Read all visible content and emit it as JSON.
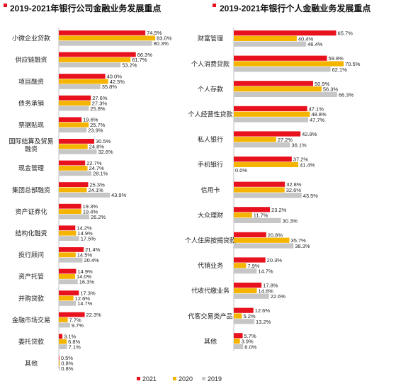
{
  "colors": {
    "y2021": "#e8121e",
    "y2020": "#f5b400",
    "y2019": "#c6c6c6",
    "title_marker": "#e8121e"
  },
  "legend": [
    "2021",
    "2020",
    "2019"
  ],
  "chart_data": [
    {
      "type": "bar",
      "orientation": "horizontal",
      "title": "2019-2021年银行公司金融业务发展重点",
      "categories": [
        "小微企业贷款",
        "供应链融资",
        "项目融资",
        "债务承销",
        "票据贴现",
        "国际结算及贸易融资",
        "现金管理",
        "集团总部融资",
        "资产证券化",
        "结构化融资",
        "投行顾问",
        "资产托管",
        "并购贷款",
        "金融市场交易",
        "委托贷款",
        "其他"
      ],
      "category_lines": [
        [
          "小微企业贷款"
        ],
        [
          "供应链融资"
        ],
        [
          "项目融资"
        ],
        [
          "债务承销"
        ],
        [
          "票据贴现"
        ],
        [
          "国际结算及贸易",
          "融资"
        ],
        [
          "现金管理"
        ],
        [
          "集团总部融资"
        ],
        [
          "资产证券化"
        ],
        [
          "结构化融资"
        ],
        [
          "投行顾问"
        ],
        [
          "资产托管"
        ],
        [
          "并购贷款"
        ],
        [
          "金融市场交易"
        ],
        [
          "委托贷款"
        ],
        [
          "其他"
        ]
      ],
      "series": [
        {
          "name": "2021",
          "values": [
            74.5,
            66.3,
            40.0,
            27.6,
            19.6,
            30.5,
            22.7,
            25.3,
            19.3,
            14.2,
            21.4,
            14.9,
            17.3,
            22.3,
            3.1,
            0.5
          ],
          "labels": [
            "74.5%",
            "66.3%",
            "40.0%",
            "27.6%",
            "19.6%",
            "30.5%",
            "22.7%",
            "25.3%",
            "19.3%",
            "14.2%",
            "21.4%",
            "14.9%",
            "17.3%",
            "22.3%",
            "3.1%",
            "0.5%"
          ]
        },
        {
          "name": "2020",
          "values": [
            83.0,
            61.7,
            42.5,
            27.3,
            25.7,
            24.8,
            24.7,
            24.1,
            19.4,
            14.9,
            14.5,
            14.0,
            12.6,
            7.7,
            6.8,
            0.8
          ],
          "labels": [
            "83.0%",
            "61.7%",
            "42.5%",
            "27.3%",
            "25.7%",
            "24.8%",
            "24.7%",
            "24.1%",
            "19.4%",
            "14.9%",
            "14.5%",
            "14.0%",
            "12.6%",
            "7.7%",
            "6.8%",
            "0.8%"
          ]
        },
        {
          "name": "2019",
          "values": [
            80.3,
            53.2,
            35.8,
            25.8,
            23.9,
            32.6,
            28.1,
            43.9,
            26.2,
            17.5,
            20.4,
            16.3,
            14.7,
            9.7,
            7.1,
            0.8
          ],
          "labels": [
            "80.3%",
            "53.2%",
            "35.8%",
            "25.8%",
            "23.9%",
            "32.6%",
            "28.1%",
            "43.9%",
            "26.2%",
            "17.5%",
            "20.4%",
            "16.3%",
            "14.7%",
            "9.7%",
            "7.1%",
            "0.8%"
          ]
        }
      ]
    },
    {
      "type": "bar",
      "orientation": "horizontal",
      "title": "2019-2021年银行个人金融业务发展重点",
      "categories": [
        "财富管理",
        "个人消费贷款",
        "个人存款",
        "个人经营性贷款",
        "私人银行",
        "手机银行",
        "信用卡",
        "大众理财",
        "个人住房按揭贷款",
        "代销业务",
        "代收代缴业务",
        "代客交易类产品",
        "其他"
      ],
      "category_lines": [
        [
          "财富管理"
        ],
        [
          "个人消费贷款"
        ],
        [
          "个人存款"
        ],
        [
          "个人经营性贷款"
        ],
        [
          "私人银行"
        ],
        [
          "手机银行"
        ],
        [
          "信用卡"
        ],
        [
          "大众理财"
        ],
        [
          "个人住房按揭贷款"
        ],
        [
          "代销业务"
        ],
        [
          "代收代缴业务"
        ],
        [
          "代客交易类产品"
        ],
        [
          "其他"
        ]
      ],
      "series": [
        {
          "name": "2021",
          "values": [
            65.7,
            59.8,
            50.9,
            47.1,
            42.8,
            37.2,
            32.8,
            23.2,
            20.8,
            20.3,
            17.8,
            12.6,
            5.7
          ],
          "labels": [
            "65.7%",
            "59.8%",
            "50.9%",
            "47.1%",
            "42.8%",
            "37.2%",
            "32.8%",
            "23.2%",
            "20.8%",
            "20.3%",
            "17.8%",
            "12.6%",
            "5.7%"
          ]
        },
        {
          "name": "2020",
          "values": [
            40.4,
            70.5,
            56.3,
            48.8,
            27.2,
            41.4,
            32.6,
            11.7,
            35.7,
            7.9,
            14.8,
            5.2,
            3.9
          ],
          "labels": [
            "40.4%",
            "70.5%",
            "56.3%",
            "48.8%",
            "27.2%",
            "41.4%",
            "32.6%",
            "11.7%",
            "35.7%",
            "7.9%",
            "14.8%",
            "5.2%",
            "3.9%"
          ]
        },
        {
          "name": "2019",
          "values": [
            46.4,
            62.1,
            66.3,
            47.7,
            36.1,
            0.0,
            43.5,
            30.3,
            38.3,
            14.7,
            22.6,
            13.2,
            6.0
          ],
          "labels": [
            "46.4%",
            "62.1%",
            "66.3%",
            "47.7%",
            "36.1%",
            "0.0%",
            "43.5%",
            "30.3%",
            "38.3%",
            "14.7%",
            "22.6%",
            "13.2%",
            "6.0%"
          ]
        }
      ]
    }
  ]
}
